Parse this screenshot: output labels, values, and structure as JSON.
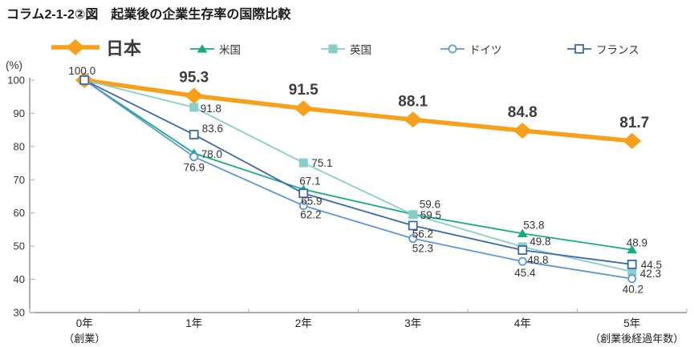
{
  "title": "コラム2-1-2②図　起業後の企業生存率の国際比較",
  "chart_data": {
    "type": "line",
    "title": "起業後の企業生存率の国際比較",
    "unit_label": "(%)",
    "ylim": [
      30,
      100
    ],
    "yticks": [
      100,
      90,
      80,
      70,
      60,
      50,
      40,
      30
    ],
    "categories": [
      "0年",
      "1年",
      "2年",
      "3年",
      "4年",
      "5年"
    ],
    "category_note_first": "（創業）",
    "category_note_last": "（創業後経過年数）",
    "origin_label": "100.0",
    "grid": false,
    "legend_position": "top",
    "series": [
      {
        "key": "japan",
        "name": "日本",
        "color": "#F6A01B",
        "marker": "diamond",
        "emphasis": true,
        "values": [
          100.0,
          95.3,
          91.5,
          88.1,
          84.8,
          81.7
        ]
      },
      {
        "key": "usa",
        "name": "米国",
        "color": "#16AB80",
        "marker": "triangle",
        "emphasis": false,
        "values": [
          100.0,
          78.0,
          67.1,
          59.6,
          53.8,
          48.9
        ]
      },
      {
        "key": "uk",
        "name": "英国",
        "color": "#89CEC8",
        "marker": "square",
        "emphasis": false,
        "values": [
          100.0,
          91.8,
          75.1,
          59.5,
          49.8,
          42.3
        ]
      },
      {
        "key": "germany",
        "name": "ドイツ",
        "color": "#5C96D8",
        "marker": "circle-open",
        "emphasis": false,
        "values": [
          100.0,
          76.9,
          62.2,
          52.3,
          45.4,
          40.2
        ]
      },
      {
        "key": "france",
        "name": "フランス",
        "color": "#3B68B0",
        "marker": "square-open",
        "emphasis": false,
        "values": [
          100.0,
          83.6,
          65.9,
          56.2,
          48.8,
          44.5
        ]
      }
    ],
    "axis_color": "#7a7a7a",
    "tick_label_color": "#333333",
    "value_label_color": "#333333",
    "emphasis_label_color": "#3d3d3d"
  }
}
